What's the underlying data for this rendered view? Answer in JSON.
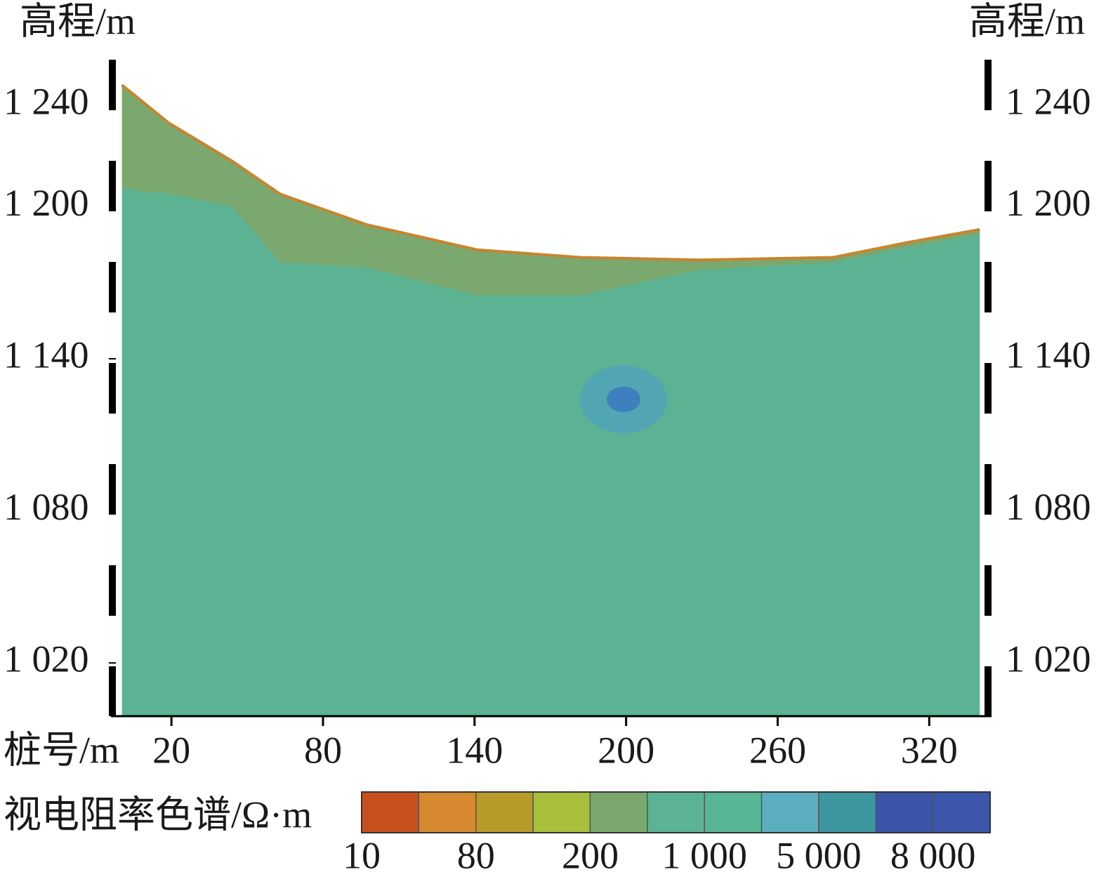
{
  "chart_data": {
    "type": "section",
    "y_label": "高程/m",
    "x_label": "桩号/m",
    "xlim": [
      -2,
      343
    ],
    "ylim": [
      999,
      1258
    ],
    "xticks": [
      20,
      80,
      140,
      200,
      260,
      320
    ],
    "yticks": [
      {
        "value": 1020,
        "label": "1 020"
      },
      {
        "value": 1080,
        "label": "1 080"
      },
      {
        "value": 1140,
        "label": "1 140"
      },
      {
        "value": 1200,
        "label": "1 200"
      },
      {
        "value": 1240,
        "label": "1 240"
      }
    ],
    "surface_x": [
      0.4,
      19,
      44,
      63,
      97,
      141,
      182,
      229,
      282,
      312,
      340
    ],
    "surface_y": [
      1248,
      1233,
      1218,
      1205,
      1193,
      1183,
      1180,
      1179,
      1180,
      1186,
      1191
    ],
    "layer_bottom_y": [
      1207,
      1205,
      1200,
      1178,
      1176,
      1165,
      1165,
      1175,
      1178,
      1184,
      1189
    ],
    "upper_color": "#7aa86e",
    "lower_color": "#5bb394",
    "anomaly": {
      "x": 199,
      "y": 1124,
      "color": "#4f9fc0",
      "core_color": "#3e7fc0"
    },
    "colorbar": {
      "label": "视电阻率色谱/Ω·m",
      "colors": [
        "#c8501e",
        "#d6892e",
        "#b89a2a",
        "#a8bf3c",
        "#7aa86e",
        "#5bb394",
        "#58b596",
        "#5aaec0",
        "#3e96a0",
        "#3a55a8",
        "#3b56aa"
      ],
      "ticks": [
        10,
        80,
        200,
        {
          "value": 1000,
          "label": "1 000"
        },
        {
          "value": 5000,
          "label": "5 000"
        },
        {
          "value": 8000,
          "label": "8 000"
        }
      ]
    }
  }
}
